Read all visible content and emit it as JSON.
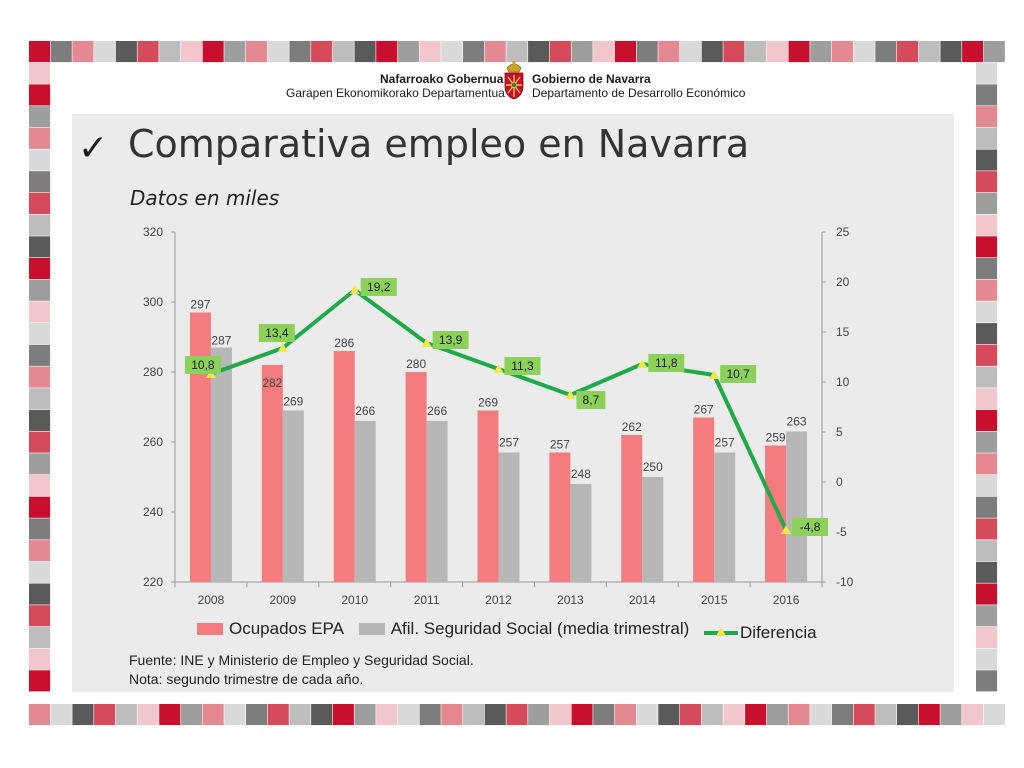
{
  "header": {
    "left_org_bold": "Nafarroako Gobernua",
    "left_dept": "Garapen Ekonomikorako Departamentua",
    "right_org_bold": "Gobierno de Navarra",
    "right_dept": "Departamento de Desarrollo Económico"
  },
  "title": "Comparativa empleo en Navarra",
  "subtitle": "Datos en miles",
  "icons": {
    "title_mark": "checkmark-icon",
    "logo": "navarra-coat-of-arms-icon"
  },
  "colors": {
    "ocupados": "#f47c7e",
    "afiliados": "#b7b7b7",
    "diferencia": "#1faa4a",
    "label_box": "#8cd25a",
    "marker": "#f0e84a",
    "panel": "#ebebeb",
    "border_palette": [
      "#c8102e",
      "#d64b5b",
      "#e48891",
      "#f2c7cc",
      "#5a5a5a",
      "#7d7d7d",
      "#9e9e9e",
      "#bdbdbd",
      "#d9d9d9"
    ]
  },
  "chart_data": {
    "type": "bar",
    "categories": [
      "2008",
      "2009",
      "2010",
      "2011",
      "2012",
      "2013",
      "2014",
      "2015",
      "2016"
    ],
    "series": [
      {
        "name": "Ocupados EPA",
        "type": "bar",
        "axis": "left",
        "values": [
          297,
          282,
          286,
          280,
          269,
          257,
          262,
          267,
          259
        ]
      },
      {
        "name": "Afil. Seguridad Social (media trimestral)",
        "type": "bar",
        "axis": "left",
        "values": [
          287,
          269,
          266,
          266,
          257,
          248,
          250,
          257,
          263
        ]
      },
      {
        "name": "Diferencia",
        "type": "line",
        "axis": "right",
        "values": [
          10.8,
          13.4,
          19.2,
          13.9,
          11.3,
          8.7,
          11.8,
          10.7,
          -4.8
        ],
        "labels": [
          "10,8",
          "13,4",
          "19,2",
          "13,9",
          "11,3",
          "8,7",
          "11,8",
          "10,7",
          "-4,8"
        ]
      }
    ],
    "ylim_left": [
      220,
      320
    ],
    "yticks_left": [
      "220",
      "240",
      "260",
      "280",
      "300",
      "320"
    ],
    "ylim_right": [
      -10,
      25
    ],
    "yticks_right": [
      "-10",
      "-5",
      "0",
      "5",
      "10",
      "15",
      "20",
      "25"
    ],
    "grid": false,
    "legend_position": "bottom"
  },
  "footnotes": {
    "source": "Fuente: INE y Ministerio de Empleo y Seguridad Social.",
    "note": "Nota: segundo trimestre de cada año."
  }
}
